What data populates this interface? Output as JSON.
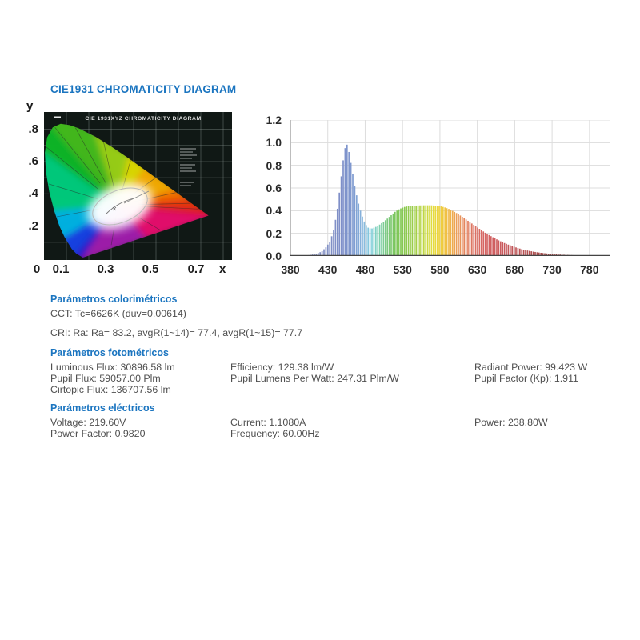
{
  "page_title": "CIE1931 CHROMATICITY DIAGRAM",
  "colors": {
    "accent_blue": "#1b75c0",
    "body_text": "#4f4f4f",
    "chart_grid": "#dcdcdc",
    "chart_axis": "#444444",
    "diagram_background": "#101815",
    "diagram_grid": "#8b9793"
  },
  "chart_data": [
    {
      "type": "area",
      "name": "spectral-power-distribution",
      "title": "",
      "xlabel": "",
      "ylabel": "",
      "xlim": [
        380,
        808
      ],
      "ylim": [
        0,
        1.2
      ],
      "grid": true,
      "x_ticks": [
        "380",
        "430",
        "480",
        "530",
        "580",
        "630",
        "680",
        "730",
        "780"
      ],
      "y_ticks": [
        "1.2",
        "1.0",
        "0.8",
        "0.6",
        "0.4",
        "0.2",
        "0.0"
      ],
      "series": [
        {
          "name": "relative spectral power",
          "points": [
            [
              380,
              0.0
            ],
            [
              395,
              0.002
            ],
            [
              405,
              0.008
            ],
            [
              415,
              0.02
            ],
            [
              422,
              0.04
            ],
            [
              428,
              0.08
            ],
            [
              433,
              0.13
            ],
            [
              438,
              0.23
            ],
            [
              443,
              0.42
            ],
            [
              448,
              0.7
            ],
            [
              452,
              0.92
            ],
            [
              455,
              1.0
            ],
            [
              458,
              0.93
            ],
            [
              462,
              0.78
            ],
            [
              466,
              0.62
            ],
            [
              470,
              0.49
            ],
            [
              475,
              0.37
            ],
            [
              480,
              0.285
            ],
            [
              484,
              0.25
            ],
            [
              488,
              0.24
            ],
            [
              492,
              0.25
            ],
            [
              497,
              0.265
            ],
            [
              502,
              0.29
            ],
            [
              508,
              0.32
            ],
            [
              514,
              0.355
            ],
            [
              520,
              0.39
            ],
            [
              526,
              0.415
            ],
            [
              532,
              0.432
            ],
            [
              538,
              0.44
            ],
            [
              545,
              0.444
            ],
            [
              552,
              0.446
            ],
            [
              560,
              0.447
            ],
            [
              568,
              0.447
            ],
            [
              575,
              0.444
            ],
            [
              580,
              0.44
            ],
            [
              586,
              0.43
            ],
            [
              592,
              0.415
            ],
            [
              598,
              0.395
            ],
            [
              604,
              0.372
            ],
            [
              610,
              0.345
            ],
            [
              616,
              0.318
            ],
            [
              622,
              0.29
            ],
            [
              628,
              0.262
            ],
            [
              634,
              0.235
            ],
            [
              640,
              0.208
            ],
            [
              646,
              0.184
            ],
            [
              652,
              0.161
            ],
            [
              658,
              0.14
            ],
            [
              664,
              0.121
            ],
            [
              670,
              0.104
            ],
            [
              676,
              0.089
            ],
            [
              682,
              0.075
            ],
            [
              690,
              0.059
            ],
            [
              698,
              0.047
            ],
            [
              706,
              0.037
            ],
            [
              714,
              0.029
            ],
            [
              722,
              0.023
            ],
            [
              730,
              0.018
            ],
            [
              740,
              0.013
            ],
            [
              750,
              0.01
            ],
            [
              760,
              0.007
            ],
            [
              770,
              0.005
            ],
            [
              780,
              0.004
            ],
            [
              790,
              0.003
            ],
            [
              800,
              0.002
            ]
          ]
        }
      ],
      "spectrum_colors": [
        [
          380,
          "#8a8fae"
        ],
        [
          420,
          "#8390c2"
        ],
        [
          450,
          "#7e8fc9"
        ],
        [
          465,
          "#7f9cd1"
        ],
        [
          478,
          "#88badf"
        ],
        [
          488,
          "#83cfdd"
        ],
        [
          497,
          "#7fd2b8"
        ],
        [
          508,
          "#7cc985"
        ],
        [
          520,
          "#7cc75d"
        ],
        [
          535,
          "#8cc94e"
        ],
        [
          548,
          "#a3d047"
        ],
        [
          560,
          "#c4d843"
        ],
        [
          570,
          "#e3dd3f"
        ],
        [
          580,
          "#efd23c"
        ],
        [
          590,
          "#f0bc45"
        ],
        [
          600,
          "#eda353"
        ],
        [
          612,
          "#e4875c"
        ],
        [
          625,
          "#dc7263"
        ],
        [
          640,
          "#d56463"
        ],
        [
          660,
          "#cc5b5e"
        ],
        [
          690,
          "#b95153"
        ],
        [
          720,
          "#a34a4a"
        ],
        [
          760,
          "#8f4342"
        ],
        [
          800,
          "#7e3c3a"
        ]
      ]
    },
    {
      "type": "scatter",
      "name": "cie1931-chromaticity-diagram",
      "title": "CIE 1931XYZ CHROMATICITY DIAGRAM",
      "xlabel": "x",
      "ylabel": "y",
      "xlim": [
        0,
        0.84
      ],
      "ylim": [
        0,
        0.917
      ],
      "x_ticks": [
        "0",
        "0.1",
        "0.3",
        "0.5",
        "0.7"
      ],
      "y_ticks": [
        ".8",
        ".6",
        ".4",
        ".2"
      ],
      "locus": [
        [
          380,
          0.1741,
          0.005
        ],
        [
          460,
          0.144,
          0.0297
        ],
        [
          470,
          0.1241,
          0.0578
        ],
        [
          480,
          0.0913,
          0.1327
        ],
        [
          485,
          0.0687,
          0.2007
        ],
        [
          490,
          0.0454,
          0.295
        ],
        [
          495,
          0.0235,
          0.4127
        ],
        [
          500,
          0.0082,
          0.5384
        ],
        [
          505,
          0.0039,
          0.6548
        ],
        [
          510,
          0.0139,
          0.7502
        ],
        [
          515,
          0.0389,
          0.812
        ],
        [
          520,
          0.0743,
          0.8338
        ],
        [
          525,
          0.1142,
          0.8262
        ],
        [
          530,
          0.1547,
          0.8059
        ],
        [
          540,
          0.2296,
          0.7543
        ],
        [
          550,
          0.3016,
          0.6923
        ],
        [
          560,
          0.3731,
          0.6245
        ],
        [
          570,
          0.4441,
          0.5547
        ],
        [
          580,
          0.5125,
          0.4866
        ],
        [
          590,
          0.5752,
          0.4242
        ],
        [
          600,
          0.627,
          0.3725
        ],
        [
          610,
          0.6658,
          0.334
        ],
        [
          620,
          0.6915,
          0.3083
        ],
        [
          640,
          0.719,
          0.2809
        ],
        [
          700,
          0.7347,
          0.2653
        ]
      ],
      "wedge_colors": [
        [
          450,
          "#2a18c8"
        ],
        [
          480,
          "#1440e0"
        ],
        [
          492,
          "#00b0e0"
        ],
        [
          503,
          "#00c87a"
        ],
        [
          517,
          "#10b428"
        ],
        [
          535,
          "#42b81e"
        ],
        [
          555,
          "#96cc14"
        ],
        [
          572,
          "#d8d400"
        ],
        [
          588,
          "#f0a800"
        ],
        [
          603,
          "#f07000"
        ],
        [
          618,
          "#e8380e"
        ],
        [
          700,
          "#e01414"
        ]
      ],
      "purple_colors": [
        "#e0106a",
        "#9c1ea8"
      ],
      "white_point": [
        0.33,
        0.33
      ]
    }
  ],
  "sections": [
    {
      "heading": "Parámetros colorimétricos",
      "rows": [
        [
          "CCT: Tc=6626K (duv=0.00614)"
        ],
        [
          "CRI: Ra: Ra= 83.2, avgR(1~14)= 77.4, avgR(1~15)= 77.7"
        ]
      ]
    },
    {
      "heading": "Parámetros fotométricos",
      "rows": [
        [
          "Luminous Flux: 30896.58 lm",
          "Efficiency: 129.38 lm/W",
          "Radiant Power: 99.423 W"
        ],
        [
          "Pupil Flux: 59057.00 Plm",
          "Pupil Lumens Per Watt: 247.31 Plm/W",
          "Pupil Factor (Kp): 1.911"
        ],
        [
          "Cirtopic Flux: 136707.56 lm",
          "",
          ""
        ]
      ]
    },
    {
      "heading": "Parámetros eléctricos",
      "rows": [
        [
          "Voltage: 219.60V",
          "Current: 1.1080A",
          "Power: 238.80W"
        ],
        [
          "Power Factor: 0.9820",
          "Frequency: 60.00Hz",
          ""
        ]
      ]
    }
  ]
}
